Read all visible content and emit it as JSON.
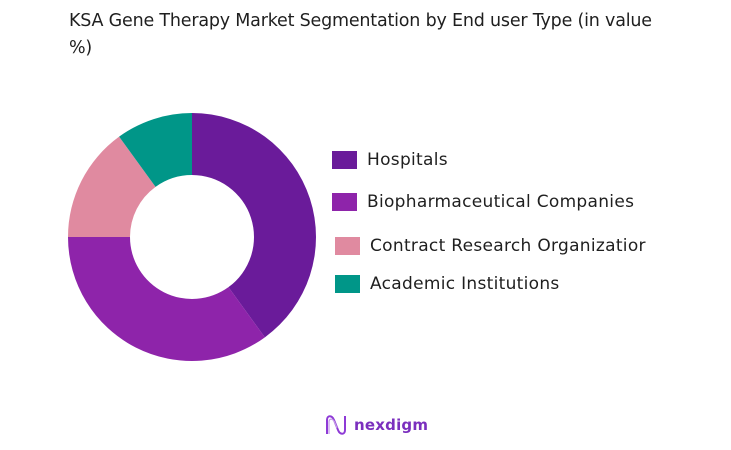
{
  "title": "KSA Gene Therapy Market Segmentation by End user Type (in value %)",
  "chart_data": {
    "type": "pie",
    "subtype": "donut",
    "title": "KSA Gene Therapy Market Segmentation by End user Type (in value %)",
    "categories": [
      "Hospitals",
      "Biopharmaceutical Companies",
      "Contract Research Organization",
      "Academic Institutions"
    ],
    "values": [
      40,
      35,
      15,
      10
    ],
    "colors": [
      "#6a1b9a",
      "#8e24aa",
      "#e08aa0",
      "#009688"
    ],
    "start_angle": "12 o'clock, clockwise",
    "legend_position": "right",
    "data_labels": false
  },
  "legend": {
    "items": [
      {
        "label": "Hospitals",
        "color": "#6a1b9a"
      },
      {
        "label": "Biopharmaceutical Companies",
        "color": "#8e24aa"
      },
      {
        "label": "Contract Research Organizatior",
        "color": "#e08aa0"
      },
      {
        "label": "Academic Institutions",
        "color": "#009688"
      }
    ]
  },
  "logo": {
    "text": "nexdigm",
    "color": "#7b2fbe"
  }
}
